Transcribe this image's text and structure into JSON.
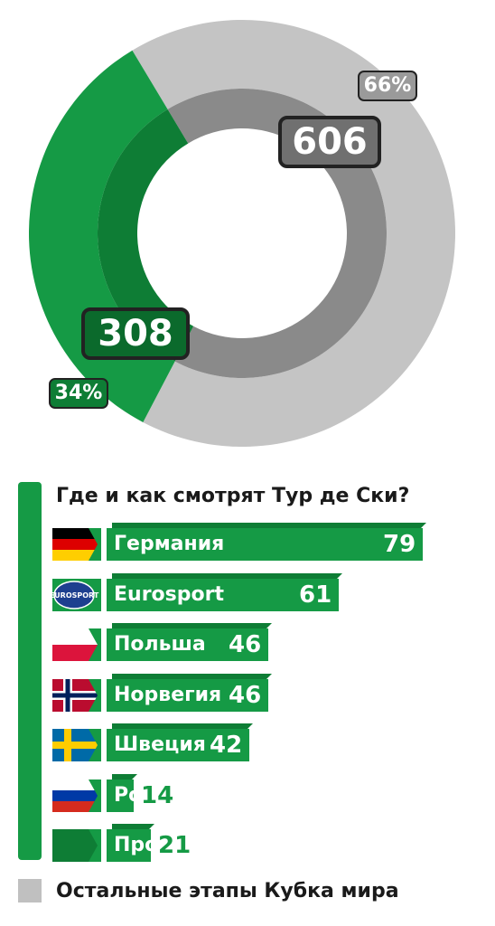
{
  "chart_data": [
    {
      "type": "pie",
      "slices": [
        {
          "label": "Остальные этапы Кубка мира",
          "value": 606,
          "percent": "66%",
          "color": "#c4c4c4",
          "inner_color": "#8a8a8a"
        },
        {
          "label": "Тур де Ски",
          "value": 308,
          "percent": "34%",
          "color": "#159a45",
          "inner_color": "#0e7d35"
        }
      ]
    },
    {
      "type": "bar",
      "title": "Где и как смотрят Тур де Ски?",
      "categories": [
        "Германия",
        "Eurosport",
        "Польша",
        "Норвегия",
        "Швеция",
        "Россия",
        "Прочие"
      ],
      "values": [
        79,
        61,
        46,
        46,
        42,
        14,
        21
      ],
      "icons": [
        "flag-germany",
        "eurosport-logo",
        "flag-poland",
        "flag-norway",
        "flag-sweden",
        "flag-russia",
        "other-icon"
      ],
      "value_color": "#ffffff",
      "outside_value_color": "#159a45"
    }
  ],
  "legend": {
    "gray_label": "Остальные этапы Кубка мира"
  },
  "colors": {
    "green": "#159a45",
    "dark_green": "#0e7d35",
    "gray": "#c4c4c4",
    "dark_gray": "#8a8a8a"
  }
}
